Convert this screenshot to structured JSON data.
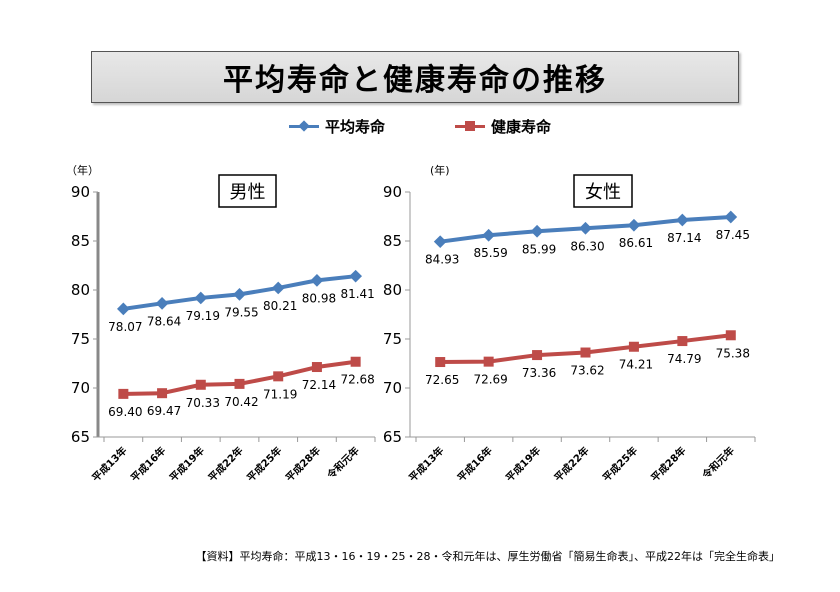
{
  "title": "平均寿命と健康寿命の推移",
  "legend": [
    {
      "label": "平均寿命",
      "color": "#4a7ebb",
      "marker": "diamond"
    },
    {
      "label": "健康寿命",
      "color": "#be4b48",
      "marker": "square"
    }
  ],
  "footnote": "【資料】平均寿命：平成13・16・19・25・28・令和元年は、厚生労働省「簡易生命表」、平成22年は「完全生命表」",
  "chart_data": [
    {
      "type": "line",
      "panel_label": "男性",
      "ylabel": "（年）",
      "ylim": [
        65,
        90
      ],
      "yticks": [
        65,
        70,
        75,
        80,
        85,
        90
      ],
      "categories": [
        "平成13年",
        "平成16年",
        "平成19年",
        "平成22年",
        "平成25年",
        "平成28年",
        "令和元年"
      ],
      "series": [
        {
          "name": "平均寿命",
          "values": [
            78.07,
            78.64,
            79.19,
            79.55,
            80.21,
            80.98,
            81.41
          ],
          "labels": [
            "78.07",
            "78.64",
            "79.19",
            "79.55",
            "80.21",
            "80.98",
            "81.41"
          ]
        },
        {
          "name": "健康寿命",
          "values": [
            69.4,
            69.47,
            70.33,
            70.42,
            71.19,
            72.14,
            72.68
          ],
          "labels": [
            "69.40",
            "69.47",
            "70.33",
            "70.42",
            "71.19",
            "72.14",
            "72.68"
          ]
        }
      ],
      "grid": false
    },
    {
      "type": "line",
      "panel_label": "女性",
      "ylabel": "(年)",
      "ylim": [
        65,
        90
      ],
      "yticks": [
        65,
        70,
        75,
        80,
        85,
        90
      ],
      "categories": [
        "平成13年",
        "平成16年",
        "平成19年",
        "平成22年",
        "平成25年",
        "平成28年",
        "令和元年"
      ],
      "series": [
        {
          "name": "平均寿命",
          "values": [
            84.93,
            85.59,
            85.99,
            86.3,
            86.61,
            87.14,
            87.45
          ],
          "labels": [
            "84.93",
            "85.59",
            "85.99",
            "86.30",
            "86.61",
            "87.14",
            "87.45"
          ]
        },
        {
          "name": "健康寿命",
          "values": [
            72.65,
            72.69,
            73.36,
            73.62,
            74.21,
            74.79,
            75.38
          ],
          "labels": [
            "72.65",
            "72.69",
            "73.36",
            "73.62",
            "74.21",
            "74.79",
            "75.38"
          ]
        }
      ],
      "grid": false
    }
  ]
}
